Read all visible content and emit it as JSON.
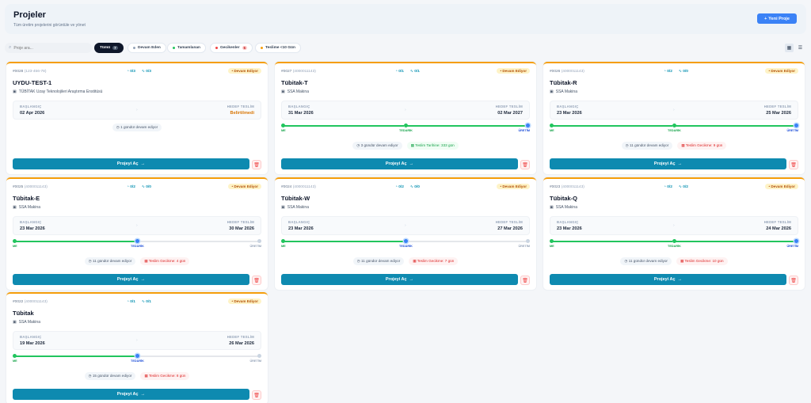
{
  "header": {
    "title": "Projeler",
    "subtitle": "Tüm üretim projelerini görüntüle ve yönet",
    "new_button": "Yeni Proje"
  },
  "toolbar": {
    "search_placeholder": "Proje ara...",
    "filters": [
      {
        "label": "Tümü",
        "count": "7"
      },
      {
        "label": "Devam Eden"
      },
      {
        "label": "Tamamlanan"
      },
      {
        "label": "Gecikenler",
        "count": "5"
      },
      {
        "label": "Teslime <10 Gün"
      }
    ]
  },
  "labels": {
    "start": "BAŞLANGIÇ",
    "target": "HEDEF TESLİM",
    "open": "Projeyi Aç",
    "stage1": "ME",
    "stage2": "TEDARİK",
    "stage3": "ÜRETİM"
  },
  "colors": {
    "accent": "#0e8ab0",
    "primary": "#3b82f6",
    "warning": "#f59e0b",
    "success": "#22c55e",
    "danger": "#ef4444"
  },
  "projects": [
    {
      "code": "#0028",
      "sub": "(123-456-78)",
      "tasks": "0/3",
      "links": "0/3",
      "status": "Devam Ediyor",
      "title": "UYDU-TEST-1",
      "org": "TÜBİTAK Uzay Teknolojileri Araştırma Enstitüsü",
      "start": "02 Apr 2026",
      "target": "Belirtilmedi",
      "days": "1 gündür devam ediyor"
    },
    {
      "code": "#0027",
      "sub": "(4000011143)",
      "tasks": "0/1",
      "links": "0/1",
      "status": "Devam Ediyor",
      "title": "Tübitak-T",
      "org": "SSA Makina",
      "start": "31 Mar 2026",
      "target": "02 Mar 2027",
      "days": "3 gündür devam ediyor",
      "note": "Teslim Tarihine: 333 gün"
    },
    {
      "code": "#0026",
      "sub": "(4000011143)",
      "tasks": "0/2",
      "links": "0/0",
      "status": "Devam Ediyor",
      "title": "Tübitak-R",
      "org": "SSA Makina",
      "start": "23 Mar 2026",
      "target": "25 Mar 2026",
      "days": "11 gündür devam ediyor",
      "note": "Teslim Gecikme: 9 gün"
    },
    {
      "code": "#0025",
      "sub": "(4000011143)",
      "tasks": "0/2",
      "links": "0/0",
      "status": "Devam Ediyor",
      "title": "Tübitak-E",
      "org": "SSA Makina",
      "start": "23 Mar 2026",
      "target": "30 Mar 2026",
      "days": "11 gündür devam ediyor",
      "note": "Teslim Gecikme: 4 gün"
    },
    {
      "code": "#0024",
      "sub": "(4000011143)",
      "tasks": "0/2",
      "links": "0/0",
      "status": "Devam Ediyor",
      "title": "Tübitak-W",
      "org": "SSA Makina",
      "start": "23 Mar 2026",
      "target": "27 Mar 2026",
      "days": "11 gündür devam ediyor",
      "note": "Teslim Gecikme: 7 gün"
    },
    {
      "code": "#0023",
      "sub": "(4000011143)",
      "tasks": "0/2",
      "links": "0/2",
      "status": "Devam Ediyor",
      "title": "Tübitak-Q",
      "org": "SSA Makina",
      "start": "23 Mar 2026",
      "target": "24 Mar 2026",
      "days": "11 gündür devam ediyor",
      "note": "Teslim Gecikme: 10 gün"
    },
    {
      "code": "#0022",
      "sub": "(4000011143)",
      "tasks": "0/1",
      "links": "0/1",
      "status": "Devam Ediyor",
      "title": "Tübitak",
      "org": "SSA Makina",
      "start": "19 Mar 2026",
      "target": "26 Mar 2026",
      "days": "15 gündür devam ediyor",
      "note": "Teslim Gecikme: 8 gün"
    }
  ]
}
